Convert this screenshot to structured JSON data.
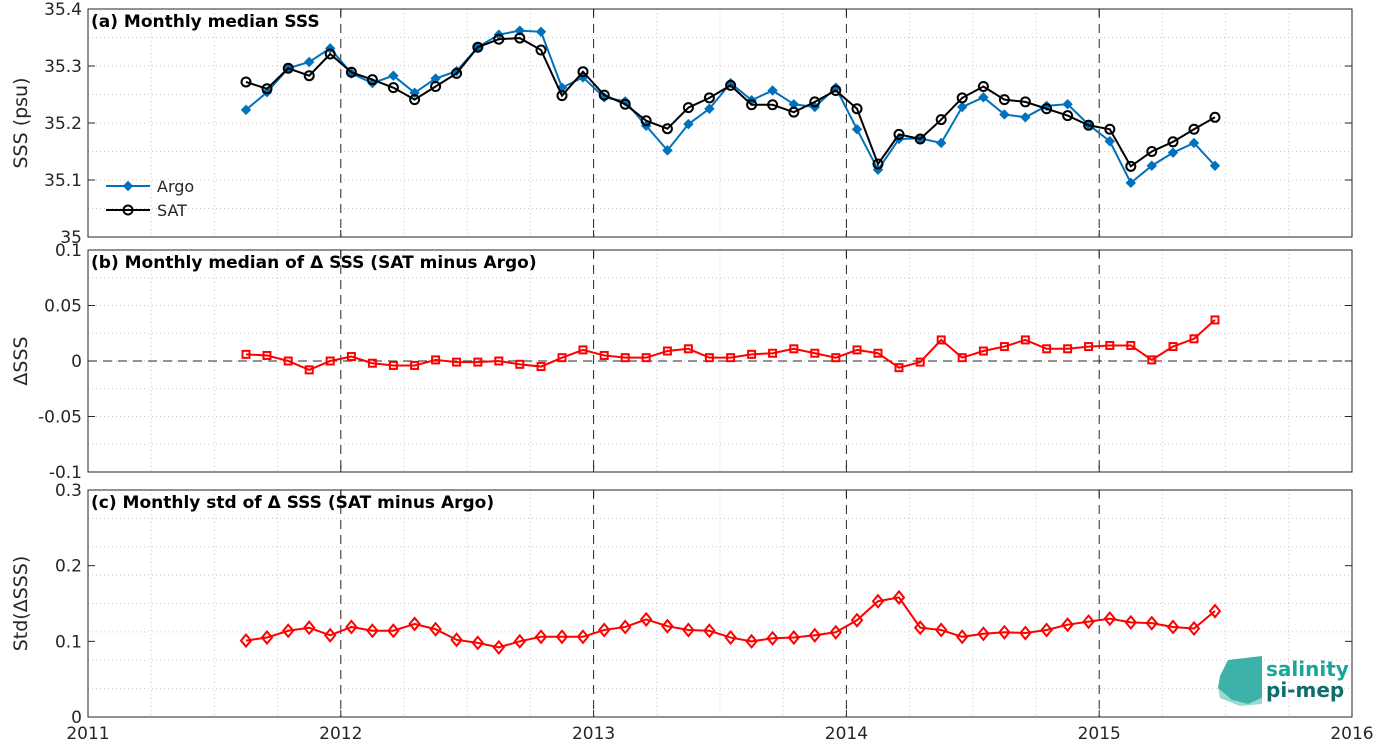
{
  "colors": {
    "argo": "#0072BD",
    "sat": "#000000",
    "delta": "#FF0000",
    "year_line": "#262626",
    "grid": "#c8c8c8",
    "logo_top": "#1aa59a",
    "logo_bottom": "#0e6f6a"
  },
  "logo": {
    "line1": "salinity",
    "line2": "pi-mep"
  },
  "chart_data": [
    {
      "type": "line",
      "title": "(a) Monthly median SSS",
      "xlabel": "",
      "ylabel": "SSS (psu)",
      "xlim": [
        2011,
        2016
      ],
      "ylim": [
        35,
        35.4
      ],
      "x_ticks": [
        "2011",
        "2012",
        "2013",
        "2014",
        "2015",
        "2016"
      ],
      "y_ticks": [
        "35",
        "35.1",
        "35.2",
        "35.3",
        "35.4"
      ],
      "grid": "dotted",
      "legend_position": "bottom-left",
      "x": [
        2011.625,
        2011.708,
        2011.792,
        2011.875,
        2011.958,
        2012.042,
        2012.125,
        2012.208,
        2012.292,
        2012.375,
        2012.458,
        2012.542,
        2012.625,
        2012.708,
        2012.792,
        2012.875,
        2012.958,
        2013.042,
        2013.125,
        2013.208,
        2013.292,
        2013.375,
        2013.458,
        2013.542,
        2013.625,
        2013.708,
        2013.792,
        2013.875,
        2013.958,
        2014.042,
        2014.125,
        2014.208,
        2014.292,
        2014.375,
        2014.458,
        2014.542,
        2014.625,
        2014.708,
        2014.792,
        2014.875,
        2014.958,
        2015.042,
        2015.125,
        2015.208,
        2015.292,
        2015.375,
        2015.458
      ],
      "series": [
        {
          "name": "Argo",
          "marker": "diamond-filled",
          "values": [
            35.223,
            35.254,
            35.296,
            35.307,
            35.331,
            35.287,
            35.27,
            35.283,
            35.253,
            35.278,
            35.291,
            35.333,
            35.355,
            35.362,
            35.36,
            35.262,
            35.28,
            35.245,
            35.238,
            35.195,
            35.152,
            35.198,
            35.225,
            35.27,
            35.24,
            35.257,
            35.233,
            35.228,
            35.262,
            35.189,
            35.118,
            35.172,
            35.173,
            35.165,
            35.228,
            35.245,
            35.215,
            35.21,
            35.23,
            35.233,
            35.197,
            35.168,
            35.095,
            35.125,
            35.148,
            35.165,
            35.125
          ]
        },
        {
          "name": "SAT",
          "marker": "circle-open",
          "values": [
            35.272,
            35.26,
            35.296,
            35.283,
            35.321,
            35.289,
            35.276,
            35.262,
            35.241,
            35.264,
            35.287,
            35.333,
            35.347,
            35.349,
            35.328,
            35.248,
            35.29,
            35.249,
            35.233,
            35.204,
            35.19,
            35.227,
            35.244,
            35.266,
            35.232,
            35.232,
            35.219,
            35.237,
            35.257,
            35.225,
            35.128,
            35.18,
            35.172,
            35.206,
            35.244,
            35.264,
            35.241,
            35.237,
            35.225,
            35.213,
            35.196,
            35.189,
            35.124,
            35.15,
            35.167,
            35.189,
            35.21
          ]
        }
      ]
    },
    {
      "type": "line",
      "title": "(b) Monthly median of Δ SSS (SAT minus Argo)",
      "xlabel": "",
      "ylabel": "ΔSSS",
      "xlim": [
        2011,
        2016
      ],
      "ylim": [
        -0.1,
        0.1
      ],
      "x_ticks": [
        "2011",
        "2012",
        "2013",
        "2014",
        "2015",
        "2016"
      ],
      "y_ticks": [
        "-0.1",
        "-0.05",
        "0",
        "0.05",
        "0.1"
      ],
      "grid": "dotted",
      "zero_line": true,
      "x": [
        2011.625,
        2011.708,
        2011.792,
        2011.875,
        2011.958,
        2012.042,
        2012.125,
        2012.208,
        2012.292,
        2012.375,
        2012.458,
        2012.542,
        2012.625,
        2012.708,
        2012.792,
        2012.875,
        2012.958,
        2013.042,
        2013.125,
        2013.208,
        2013.292,
        2013.375,
        2013.458,
        2013.542,
        2013.625,
        2013.708,
        2013.792,
        2013.875,
        2013.958,
        2014.042,
        2014.125,
        2014.208,
        2014.292,
        2014.375,
        2014.458,
        2014.542,
        2014.625,
        2014.708,
        2014.792,
        2014.875,
        2014.958,
        2015.042,
        2015.125,
        2015.208,
        2015.292,
        2015.375,
        2015.458
      ],
      "series": [
        {
          "marker": "square-open",
          "values": [
            0.006,
            0.005,
            0.0,
            -0.008,
            0.0,
            0.004,
            -0.002,
            -0.004,
            -0.004,
            0.001,
            -0.001,
            -0.001,
            0.0,
            -0.003,
            -0.005,
            0.003,
            0.01,
            0.005,
            0.003,
            0.003,
            0.009,
            0.011,
            0.003,
            0.003,
            0.006,
            0.007,
            0.011,
            0.007,
            0.003,
            0.01,
            0.007,
            -0.006,
            -0.001,
            0.019,
            0.003,
            0.009,
            0.013,
            0.019,
            0.011,
            0.011,
            0.013,
            0.014,
            0.014,
            0.001,
            0.013,
            0.02,
            0.037
          ]
        }
      ]
    },
    {
      "type": "line",
      "title": "(c) Monthly std of Δ SSS (SAT minus Argo)",
      "xlabel": "",
      "ylabel": "Std(ΔSSS)",
      "xlim": [
        2011,
        2016
      ],
      "ylim": [
        0,
        0.3
      ],
      "x_ticks": [
        "2011",
        "2012",
        "2013",
        "2014",
        "2015",
        "2016"
      ],
      "y_ticks": [
        "0",
        "0.1",
        "0.2",
        "0.3"
      ],
      "grid": "dotted",
      "x": [
        2011.625,
        2011.708,
        2011.792,
        2011.875,
        2011.958,
        2012.042,
        2012.125,
        2012.208,
        2012.292,
        2012.375,
        2012.458,
        2012.542,
        2012.625,
        2012.708,
        2012.792,
        2012.875,
        2012.958,
        2013.042,
        2013.125,
        2013.208,
        2013.292,
        2013.375,
        2013.458,
        2013.542,
        2013.625,
        2013.708,
        2013.792,
        2013.875,
        2013.958,
        2014.042,
        2014.125,
        2014.208,
        2014.292,
        2014.375,
        2014.458,
        2014.542,
        2014.625,
        2014.708,
        2014.792,
        2014.875,
        2014.958,
        2015.042,
        2015.125,
        2015.208,
        2015.292,
        2015.375,
        2015.458
      ],
      "series": [
        {
          "marker": "diamond-open",
          "values": [
            0.101,
            0.105,
            0.114,
            0.118,
            0.108,
            0.119,
            0.114,
            0.114,
            0.123,
            0.116,
            0.102,
            0.098,
            0.092,
            0.1,
            0.106,
            0.106,
            0.106,
            0.115,
            0.119,
            0.129,
            0.12,
            0.115,
            0.114,
            0.105,
            0.1,
            0.104,
            0.105,
            0.108,
            0.112,
            0.128,
            0.153,
            0.158,
            0.118,
            0.115,
            0.106,
            0.11,
            0.112,
            0.111,
            0.115,
            0.122,
            0.126,
            0.13,
            0.125,
            0.124,
            0.119,
            0.117,
            0.14
          ]
        }
      ]
    }
  ]
}
